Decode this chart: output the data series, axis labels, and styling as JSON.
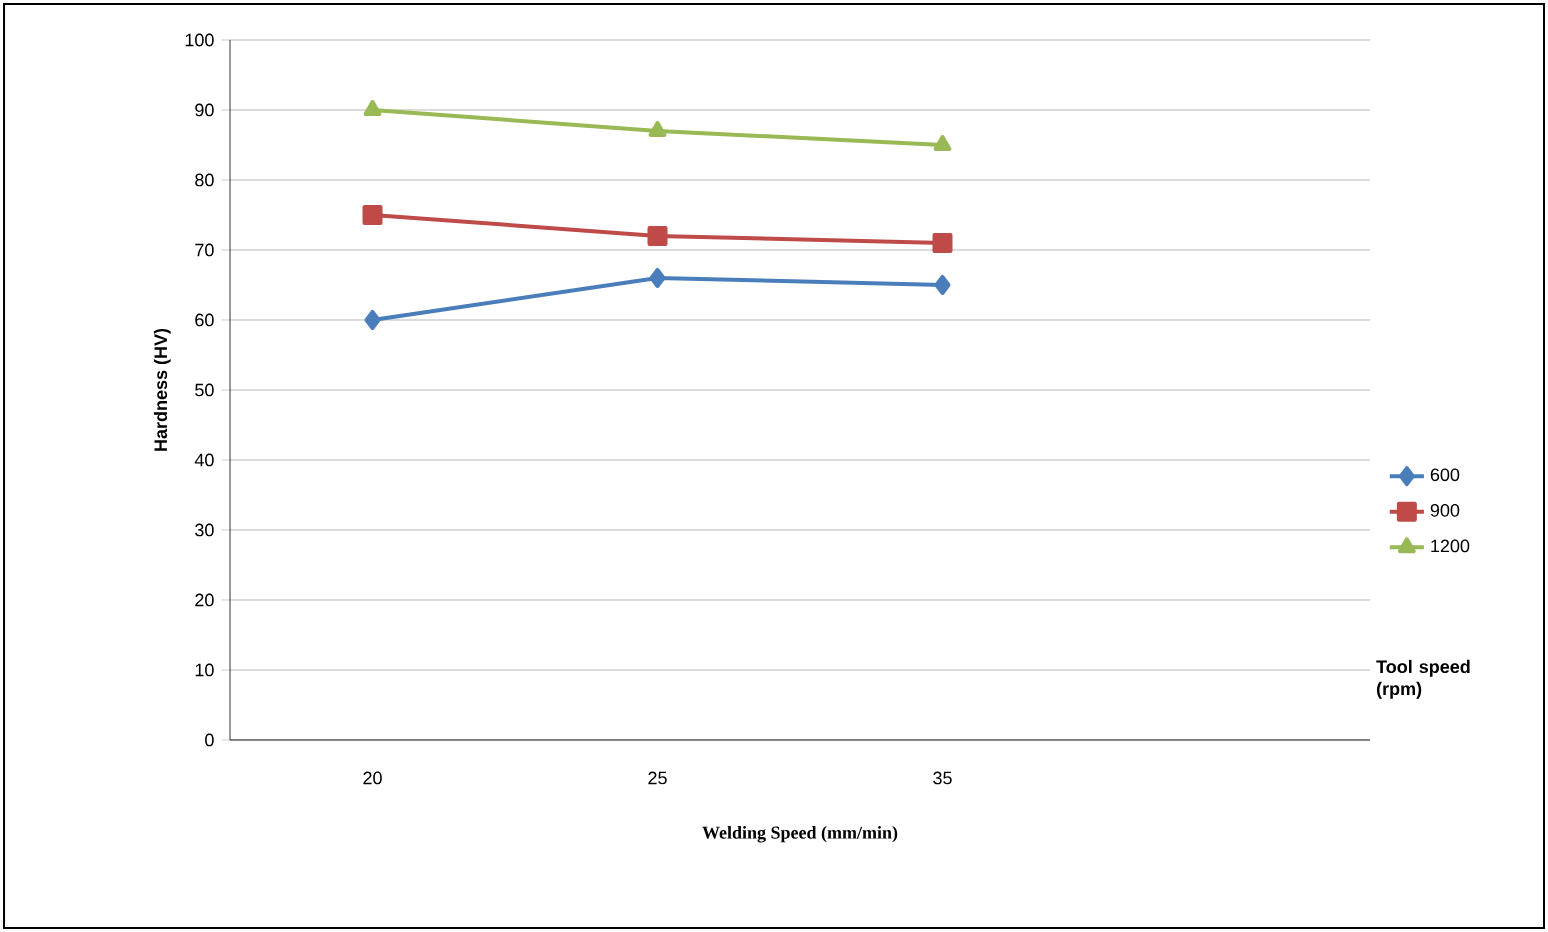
{
  "chart_data": {
    "type": "line",
    "xlabel": "Welding Speed (mm/min)",
    "ylabel": "Hardness (HV)",
    "legend_title": "Tool speed (rpm)",
    "categories": [
      "20",
      "25",
      "35",
      null
    ],
    "series": [
      {
        "name": "600",
        "color": "#4a7ebb",
        "marker": "diamond",
        "values": [
          60,
          66,
          65,
          null
        ]
      },
      {
        "name": "900",
        "color": "#be4b48",
        "marker": "square",
        "values": [
          75,
          72,
          71,
          null
        ]
      },
      {
        "name": "1200",
        "color": "#98b954",
        "marker": "triangle",
        "values": [
          90,
          87,
          85,
          null
        ]
      }
    ],
    "ylim": [
      0,
      100
    ],
    "yticks": [
      0,
      10,
      20,
      30,
      40,
      50,
      60,
      70,
      80,
      90,
      100
    ],
    "grid": "y",
    "legend": "right"
  }
}
